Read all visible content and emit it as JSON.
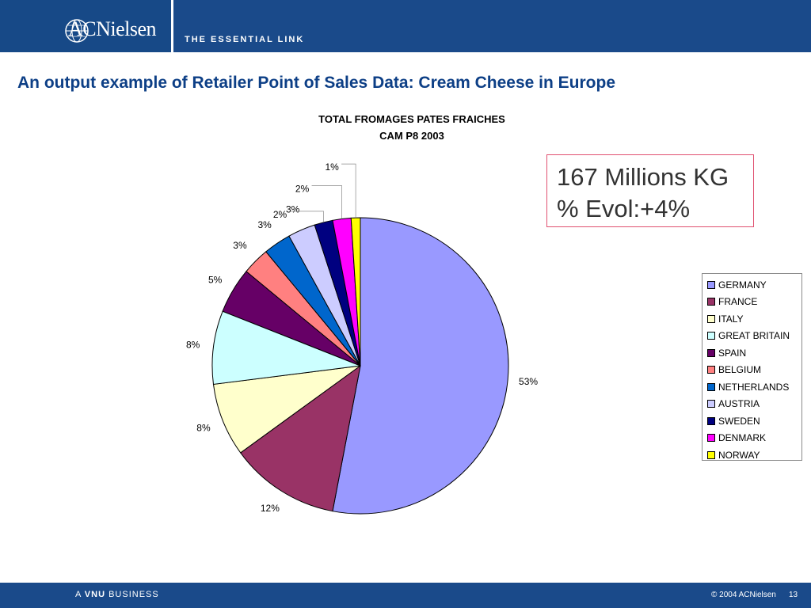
{
  "header": {
    "logo_text": "ACNielsen",
    "tagline": "THE ESSENTIAL LINK"
  },
  "slide": {
    "title": "An output example of Retailer Point of Sales Data: Cream Cheese in Europe"
  },
  "callout": {
    "line1": "167 Millions KG",
    "line2": "% Evol:+4%"
  },
  "chart_data": {
    "type": "pie",
    "title": "TOTAL FROMAGES PATES FRAICHES",
    "subtitle": "CAM P8 2003",
    "legend_position": "right",
    "categories": [
      "GERMANY",
      "FRANCE",
      "ITALY",
      "GREAT BRITAIN",
      "SPAIN",
      "BELGIUM",
      "NETHERLANDS",
      "AUSTRIA",
      "SWEDEN",
      "DENMARK",
      "NORWAY"
    ],
    "values": [
      53,
      12,
      8,
      8,
      5,
      3,
      3,
      3,
      2,
      2,
      1
    ],
    "labels": [
      "53%",
      "12%",
      "8%",
      "8%",
      "5%",
      "3%",
      "3%",
      "3%",
      "2%",
      "2%",
      "1%"
    ],
    "colors": [
      "#9999ff",
      "#993366",
      "#ffffcc",
      "#ccffff",
      "#660066",
      "#ff8080",
      "#0066cc",
      "#ccccff",
      "#000080",
      "#ff00ff",
      "#ffff00"
    ]
  },
  "footer": {
    "left_prefix": "A",
    "left_bold": "VNU",
    "left_suffix": "BUSINESS",
    "copyright": "© 2004 ACNielsen",
    "page": "13"
  }
}
